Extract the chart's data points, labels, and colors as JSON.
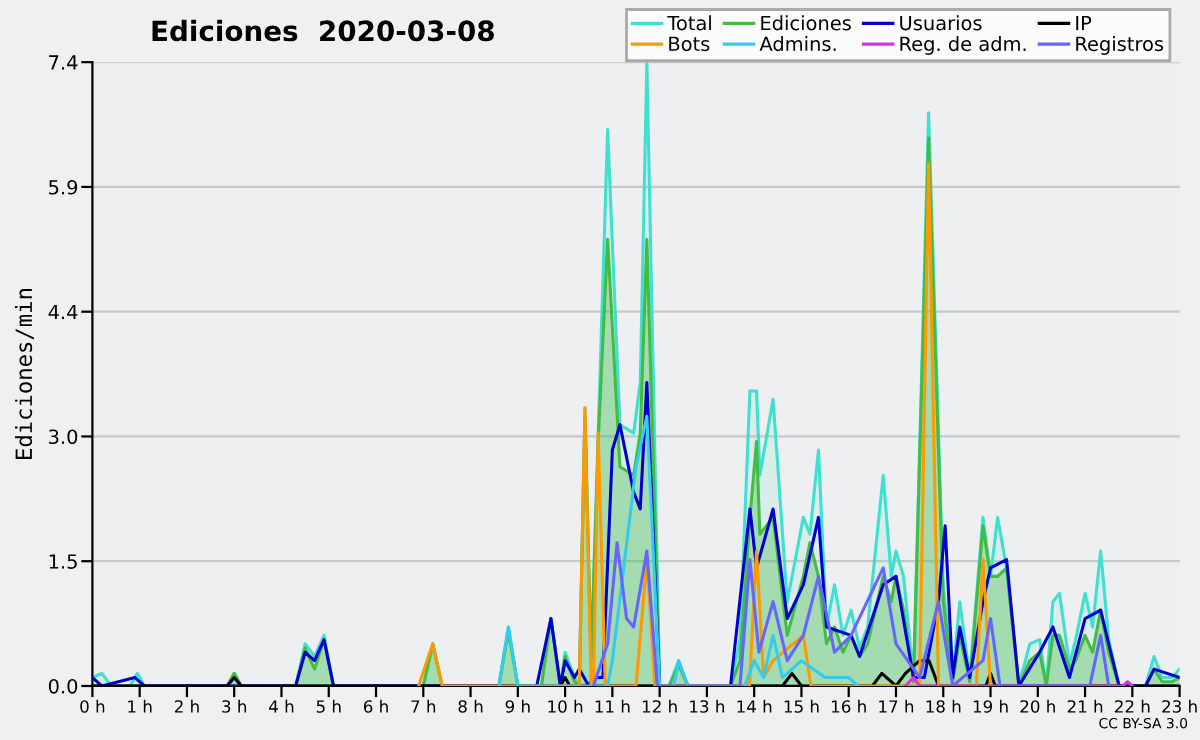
{
  "chart_data": {
    "type": "line",
    "title": "Ediciones  2020-03-08",
    "ylabel": "Ediciones/min",
    "annotations": [
      "CC BY-SA 3.0"
    ],
    "xlim": [
      0,
      23
    ],
    "ylim": [
      0,
      7.4
    ],
    "xticks": [
      {
        "value": 0,
        "label": "0 h"
      },
      {
        "value": 1,
        "label": "1 h"
      },
      {
        "value": 2,
        "label": "2 h"
      },
      {
        "value": 3,
        "label": "3 h"
      },
      {
        "value": 4,
        "label": "4 h"
      },
      {
        "value": 5,
        "label": "5 h"
      },
      {
        "value": 6,
        "label": "6 h"
      },
      {
        "value": 7,
        "label": "7 h"
      },
      {
        "value": 8,
        "label": "8 h"
      },
      {
        "value": 9,
        "label": "9 h"
      },
      {
        "value": 10,
        "label": "10 h"
      },
      {
        "value": 11,
        "label": "11 h"
      },
      {
        "value": 12,
        "label": "12 h"
      },
      {
        "value": 13,
        "label": "13 h"
      },
      {
        "value": 14,
        "label": "14 h"
      },
      {
        "value": 15,
        "label": "15 h"
      },
      {
        "value": 16,
        "label": "16 h"
      },
      {
        "value": 17,
        "label": "17 h"
      },
      {
        "value": 18,
        "label": "18 h"
      },
      {
        "value": 19,
        "label": "19 h"
      },
      {
        "value": 20,
        "label": "20 h"
      },
      {
        "value": 21,
        "label": "21 h"
      },
      {
        "value": 22,
        "label": "22 h"
      },
      {
        "value": 23,
        "label": "23 h"
      }
    ],
    "yticks": [
      {
        "value": 0,
        "label": "0.0"
      },
      {
        "value": 1.48,
        "label": "1.5"
      },
      {
        "value": 2.96,
        "label": "3.0"
      },
      {
        "value": 4.44,
        "label": "4.4"
      },
      {
        "value": 5.92,
        "label": "5.9"
      },
      7.4
    ],
    "grid": "y",
    "legend": "top right",
    "series": [
      {
        "name": "Total",
        "type": "area",
        "color": "#40e0d0",
        "x": [
          0,
          0.2,
          0.4,
          0.8,
          0.95,
          1.1,
          2.85,
          3.0,
          3.15,
          4.3,
          4.5,
          4.7,
          4.9,
          5.1,
          7.0,
          7.2,
          7.4,
          8.6,
          8.8,
          9.0,
          9.5,
          9.7,
          9.9,
          10.0,
          10.2,
          10.3,
          10.42,
          10.55,
          10.7,
          10.9,
          11.16,
          11.45,
          11.59,
          11.73,
          12.0,
          12.2,
          12.4,
          12.6,
          13.5,
          13.7,
          13.91,
          14.05,
          14.12,
          14.4,
          14.7,
          15.04,
          15.18,
          15.36,
          15.53,
          15.7,
          15.88,
          16.05,
          16.23,
          16.4,
          16.73,
          16.9,
          17.0,
          17.16,
          17.37,
          17.69,
          18.0,
          18.2,
          18.35,
          18.56,
          18.84,
          19.0,
          19.15,
          19.34,
          19.6,
          19.83,
          20.04,
          20.18,
          20.32,
          20.46,
          20.67,
          20.8,
          21.0,
          21.16,
          21.33,
          21.5,
          21.72,
          22.28,
          22.46,
          22.63,
          22.84,
          23.0
        ],
        "values": [
          0.1,
          0.15,
          0,
          0,
          0.15,
          0,
          0,
          0.15,
          0,
          0,
          0.5,
          0.35,
          0.6,
          0,
          0,
          0.5,
          0,
          0,
          0.7,
          0,
          0,
          0.8,
          0,
          0.4,
          0.1,
          0,
          3.3,
          0.3,
          3.0,
          6.6,
          3.1,
          3.0,
          3.6,
          7.4,
          0,
          0,
          0.3,
          0,
          0,
          0.55,
          3.5,
          3.5,
          2.5,
          3.4,
          1.0,
          2.0,
          1.8,
          2.8,
          0.7,
          1.2,
          0.6,
          0.9,
          0.45,
          0.7,
          2.5,
          1.3,
          1.6,
          1.3,
          0.1,
          6.8,
          1.2,
          0.1,
          1.0,
          0.1,
          2.0,
          1.3,
          2.0,
          1.4,
          0,
          0.5,
          0.55,
          0,
          1.0,
          1.1,
          0.25,
          0.55,
          1.1,
          0.7,
          1.6,
          0.55,
          0,
          0,
          0.35,
          0.1,
          0.1,
          0.2
        ]
      },
      {
        "name": "Ediciones",
        "type": "area",
        "color": "#44bb44",
        "x": [
          0,
          0.2,
          0.4,
          0.8,
          0.95,
          1.1,
          2.85,
          3.0,
          3.15,
          4.3,
          4.5,
          4.7,
          4.9,
          5.1,
          7.0,
          7.2,
          7.4,
          8.6,
          8.8,
          9.0,
          9.5,
          9.7,
          9.9,
          10.0,
          10.2,
          10.3,
          10.42,
          10.55,
          10.7,
          10.9,
          11.16,
          11.45,
          11.59,
          11.73,
          12.0,
          12.2,
          12.4,
          12.6,
          13.5,
          13.7,
          13.91,
          14.05,
          14.12,
          14.4,
          14.7,
          15.04,
          15.18,
          15.36,
          15.53,
          15.7,
          15.88,
          16.05,
          16.23,
          16.4,
          16.73,
          16.9,
          17.0,
          17.16,
          17.37,
          17.69,
          18.0,
          18.2,
          18.35,
          18.56,
          18.84,
          19.0,
          19.15,
          19.34,
          19.6,
          19.83,
          20.04,
          20.18,
          20.32,
          20.46,
          20.67,
          20.8,
          21.0,
          21.16,
          21.33,
          21.5,
          21.72,
          22.28,
          22.46,
          22.63,
          22.84,
          23.0
        ],
        "values": [
          0,
          0,
          0,
          0,
          0,
          0,
          0,
          0.15,
          0,
          0,
          0.45,
          0.2,
          0.55,
          0,
          0,
          0.5,
          0,
          0,
          0.65,
          0,
          0,
          0.8,
          0,
          0.35,
          0.05,
          0,
          3.2,
          0.3,
          2.9,
          5.3,
          2.6,
          2.5,
          3.0,
          5.3,
          0,
          0,
          0.25,
          0,
          0,
          0.3,
          2.0,
          2.9,
          1.8,
          2.0,
          0.6,
          1.3,
          1.7,
          1.3,
          0.5,
          0.7,
          0.4,
          0.6,
          0.35,
          0.5,
          1.3,
          1.0,
          1.3,
          0.9,
          0.05,
          6.5,
          1.0,
          0.05,
          0.6,
          0.05,
          1.9,
          1.3,
          1.3,
          1.4,
          0,
          0.3,
          0.4,
          0,
          0.6,
          0.6,
          0.2,
          0.3,
          0.6,
          0.4,
          0.9,
          0.4,
          0,
          0,
          0.2,
          0.05,
          0.05,
          0.1
        ]
      },
      {
        "name": "Usuarios",
        "color": "#0000cc",
        "x": [
          0,
          0.2,
          0.9,
          1.1,
          4.3,
          4.5,
          4.7,
          4.9,
          5.1,
          9.4,
          9.7,
          9.9,
          10.0,
          10.2,
          10.3,
          10.5,
          10.6,
          10.8,
          11.0,
          11.16,
          11.45,
          11.59,
          11.73,
          12.0,
          13.5,
          13.91,
          14.05,
          14.4,
          14.7,
          15.04,
          15.36,
          15.53,
          16.05,
          16.23,
          16.73,
          17.0,
          17.37,
          17.6,
          17.9,
          18.04,
          18.2,
          18.35,
          18.56,
          18.84,
          19.0,
          19.34,
          19.6,
          20.04,
          20.32,
          20.67,
          21.0,
          21.33,
          21.5,
          21.72,
          22.28,
          22.46,
          23.0
        ],
        "values": [
          0.1,
          0,
          0.1,
          0,
          0,
          0.4,
          0.3,
          0.55,
          0,
          0,
          0.8,
          0,
          0.3,
          0.1,
          0.2,
          0,
          0.1,
          0.1,
          2.8,
          3.1,
          2.3,
          2.1,
          3.6,
          0,
          0,
          2.1,
          1.4,
          2.1,
          0.8,
          1.2,
          2.0,
          0.7,
          0.6,
          0.35,
          1.2,
          1.3,
          0.1,
          0.1,
          1.0,
          1.9,
          0.1,
          0.7,
          0.1,
          1.0,
          1.4,
          1.5,
          0,
          0.4,
          0.7,
          0.1,
          0.8,
          0.9,
          0.5,
          0,
          0,
          0.2,
          0.1
        ]
      },
      {
        "name": "IP",
        "color": "#000000",
        "x": [
          0,
          2.85,
          3.0,
          3.15,
          9.9,
          10.0,
          10.1,
          14.6,
          14.8,
          15.0,
          16.5,
          16.7,
          17.0,
          17.2,
          17.5,
          17.7,
          17.9,
          18.9,
          19.0,
          19.1,
          23.0
        ],
        "values": [
          0,
          0,
          0.1,
          0,
          0,
          0.1,
          0,
          0,
          0.15,
          0,
          0,
          0.15,
          0,
          0.15,
          0.3,
          0.3,
          0,
          0,
          0.15,
          0,
          0
        ]
      },
      {
        "name": "Bots",
        "color": "#ff9900",
        "x": [
          6.9,
          7.2,
          7.4,
          10.3,
          10.42,
          10.55,
          10.6,
          10.7,
          10.85,
          11.5,
          11.73,
          11.9,
          13.9,
          14.05,
          14.2,
          14.4,
          15.04,
          15.2,
          17.5,
          17.69,
          17.9,
          18.7,
          18.84,
          19.0
        ],
        "values": [
          0,
          0.5,
          0,
          0,
          3.3,
          0,
          0,
          3.0,
          0,
          0,
          1.5,
          0,
          0,
          1.6,
          0.1,
          0.3,
          0.6,
          0,
          0,
          6.2,
          0,
          0,
          1.5,
          0
        ]
      },
      {
        "name": "Admins.",
        "color": "#33ccee",
        "x": [
          8.6,
          8.8,
          9.0,
          10.9,
          11.0,
          11.5,
          11.73,
          12.0,
          12.3,
          12.4,
          12.6,
          13.8,
          14.0,
          14.2,
          14.4,
          14.6,
          15.0,
          15.5,
          16.0,
          16.2
        ],
        "values": [
          0,
          0.7,
          0,
          0,
          0.3,
          2.6,
          3.2,
          0,
          0,
          0.3,
          0,
          0,
          0.3,
          0.1,
          0.6,
          0.1,
          0.3,
          0.1,
          0.1,
          0
        ]
      },
      {
        "name": "Reg. de adm.",
        "color": "#dd33dd",
        "x": [
          17.2,
          17.37,
          17.5,
          21.8,
          21.9,
          22.0
        ],
        "values": [
          0,
          0.1,
          0,
          0,
          0.05,
          0
        ]
      },
      {
        "name": "Registros",
        "color": "#6666ff",
        "x": [
          10.6,
          10.9,
          11.1,
          11.3,
          11.45,
          11.73,
          11.95,
          13.7,
          13.91,
          14.1,
          14.4,
          14.7,
          15.04,
          15.36,
          15.7,
          16.05,
          16.73,
          17.0,
          17.5,
          17.9,
          18.2,
          18.84,
          19.0,
          19.2,
          21.1,
          21.33,
          21.5
        ],
        "values": [
          0,
          0.5,
          1.7,
          0.8,
          0.7,
          1.6,
          0,
          0,
          1.5,
          0.4,
          1.0,
          0.3,
          0.6,
          1.3,
          0.4,
          0.6,
          1.4,
          0.5,
          0.1,
          1.0,
          0,
          0.3,
          0.8,
          0,
          0,
          0.6,
          0
        ]
      }
    ]
  }
}
